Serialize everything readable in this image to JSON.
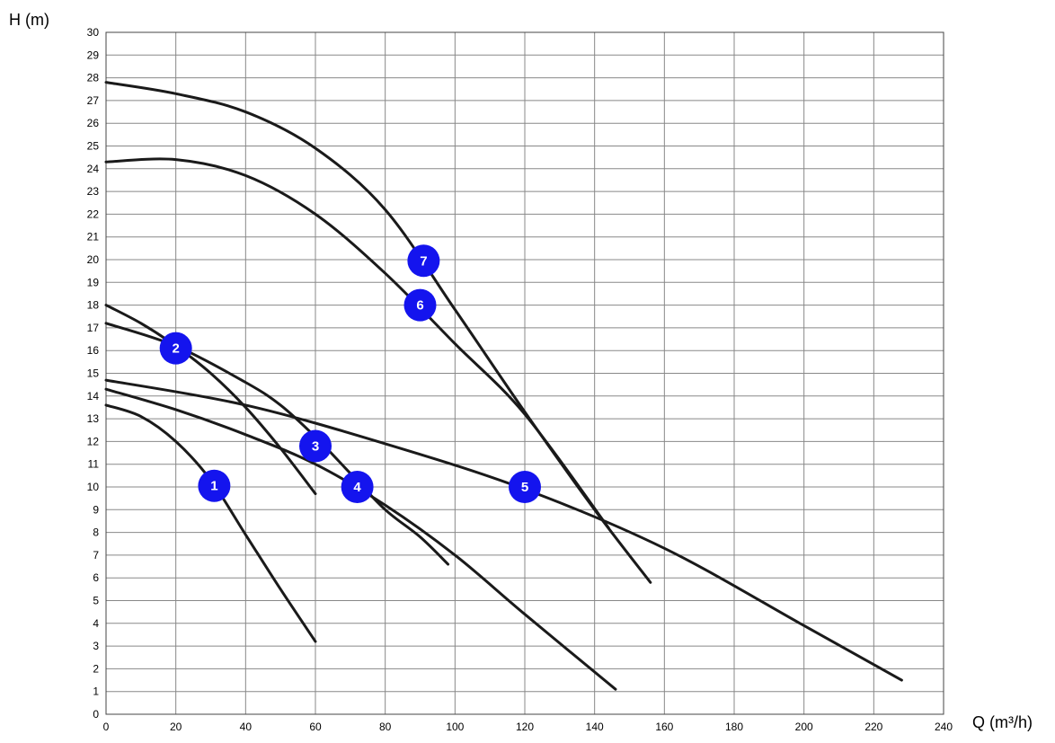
{
  "chart_data": {
    "type": "line",
    "xlabel": "Q (m³/h)",
    "ylabel": "H (m)",
    "xlim": [
      0,
      240
    ],
    "ylim": [
      0,
      30
    ],
    "x_ticks": [
      0,
      20,
      40,
      60,
      80,
      100,
      120,
      140,
      160,
      180,
      200,
      220,
      240
    ],
    "y_ticks": [
      0,
      1,
      2,
      3,
      4,
      5,
      6,
      7,
      8,
      9,
      10,
      11,
      12,
      13,
      14,
      15,
      16,
      17,
      18,
      19,
      20,
      21,
      22,
      23,
      24,
      25,
      26,
      27,
      28,
      29,
      30
    ],
    "grid": true,
    "line_color": "#1a1a1a",
    "badge_color": "#1414ee",
    "series": [
      {
        "name": "1",
        "label_at": [
          31,
          10.05
        ],
        "points": [
          [
            0,
            13.6
          ],
          [
            10,
            13.1
          ],
          [
            20,
            12.0
          ],
          [
            30,
            10.3
          ],
          [
            40,
            7.9
          ],
          [
            50,
            5.5
          ],
          [
            60,
            3.2
          ]
        ]
      },
      {
        "name": "2",
        "label_at": [
          20,
          16.1
        ],
        "points": [
          [
            0,
            18.0
          ],
          [
            10,
            17.2
          ],
          [
            20,
            16.2
          ],
          [
            30,
            15.0
          ],
          [
            40,
            13.5
          ],
          [
            50,
            11.7
          ],
          [
            60,
            9.7
          ]
        ]
      },
      {
        "name": "3",
        "label_at": [
          60,
          11.8
        ],
        "points": [
          [
            0,
            17.2
          ],
          [
            20,
            16.2
          ],
          [
            40,
            14.6
          ],
          [
            50,
            13.6
          ],
          [
            60,
            12.2
          ],
          [
            70,
            10.6
          ],
          [
            80,
            9.0
          ],
          [
            90,
            7.8
          ],
          [
            98,
            6.6
          ]
        ]
      },
      {
        "name": "4",
        "label_at": [
          72,
          10.0
        ],
        "points": [
          [
            0,
            14.3
          ],
          [
            20,
            13.4
          ],
          [
            40,
            12.3
          ],
          [
            60,
            11.0
          ],
          [
            80,
            9.2
          ],
          [
            100,
            7.0
          ],
          [
            120,
            4.4
          ],
          [
            146,
            1.1
          ]
        ]
      },
      {
        "name": "5",
        "label_at": [
          120,
          10.0
        ],
        "points": [
          [
            0,
            14.7
          ],
          [
            40,
            13.6
          ],
          [
            80,
            11.9
          ],
          [
            120,
            9.9
          ],
          [
            160,
            7.3
          ],
          [
            200,
            3.9
          ],
          [
            228,
            1.5
          ]
        ]
      },
      {
        "name": "6",
        "label_at": [
          90,
          18.0
        ],
        "points": [
          [
            0,
            24.3
          ],
          [
            20,
            24.4
          ],
          [
            40,
            23.7
          ],
          [
            60,
            22.0
          ],
          [
            80,
            19.4
          ],
          [
            100,
            16.3
          ],
          [
            120,
            13.2
          ],
          [
            144,
            8.2
          ]
        ]
      },
      {
        "name": "7",
        "label_at": [
          91,
          19.95
        ],
        "points": [
          [
            0,
            27.8
          ],
          [
            20,
            27.3
          ],
          [
            40,
            26.5
          ],
          [
            60,
            24.9
          ],
          [
            80,
            22.2
          ],
          [
            100,
            17.8
          ],
          [
            120,
            13.3
          ],
          [
            140,
            9.0
          ],
          [
            156,
            5.8
          ]
        ]
      }
    ]
  }
}
